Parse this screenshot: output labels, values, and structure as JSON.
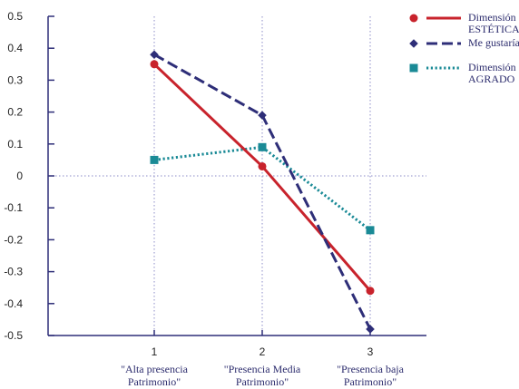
{
  "chart_data": {
    "type": "line",
    "x": [
      1,
      2,
      3
    ],
    "x_tick_labels": [
      "1",
      "2",
      "3"
    ],
    "categories": [
      [
        "\"Alta presencia",
        "Patrimonio\""
      ],
      [
        "\"Presencia Media",
        "Patrimonio\""
      ],
      [
        "\"Presencia baja",
        "Patrimonio\""
      ]
    ],
    "y_ticks": [
      0.5,
      0.4,
      0.3,
      0.2,
      0.1,
      0,
      -0.1,
      -0.2,
      -0.3,
      -0.4,
      -0.5
    ],
    "y_tick_labels": [
      "0.5",
      "0.4",
      "0.3",
      "0.2",
      "0.1",
      "0",
      "-0.1",
      "-0.2",
      "-0.3",
      "-0.4",
      "-0.5"
    ],
    "ylim": [
      -0.5,
      0.5
    ],
    "xlim": [
      0.5,
      3.5
    ],
    "title": "",
    "xlabel": "",
    "ylabel": "",
    "grid": "dotted reference lines at x=1,2,3 and y=0",
    "legend_position": "top-right",
    "series": [
      {
        "name": [
          "Dimensión",
          "ESTÉTICA"
        ],
        "values": [
          0.35,
          0.03,
          -0.36
        ],
        "color": "#c8232c",
        "dash": "solid",
        "marker": "circle"
      },
      {
        "name": [
          "Me gustaría"
        ],
        "values": [
          0.38,
          0.19,
          -0.48
        ],
        "color": "#2e2e78",
        "dash": "dashed",
        "marker": "diamond"
      },
      {
        "name": [
          "Dimensión",
          "AGRADO"
        ],
        "values": [
          0.05,
          0.09,
          -0.17
        ],
        "color": "#1a8a96",
        "dash": "dotted",
        "marker": "square"
      }
    ]
  }
}
